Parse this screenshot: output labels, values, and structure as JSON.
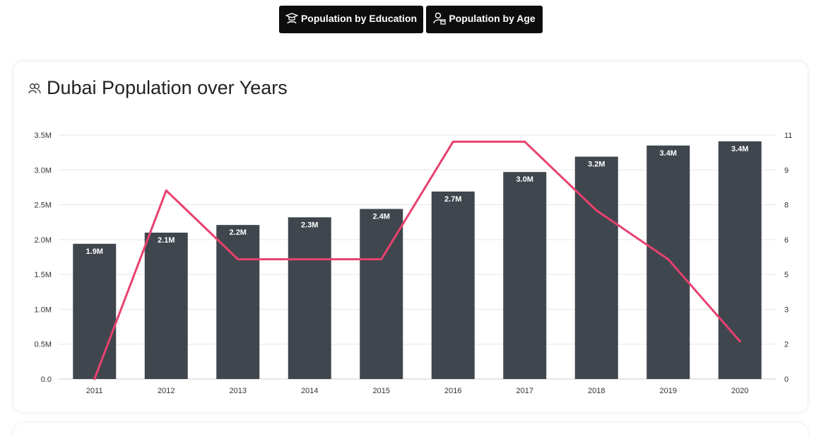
{
  "nav": {
    "education_label": "Population by Education",
    "age_label": "Population by Age"
  },
  "card": {
    "title": "Dubai Population over Years"
  },
  "colors": {
    "bar": "#40464e",
    "line": "#e8416f",
    "grid": "#e6e6e6",
    "axis_text": "#333333",
    "button_bg": "#0d0d0d"
  },
  "chart_data": {
    "type": "bar",
    "categories": [
      "2011",
      "2012",
      "2013",
      "2014",
      "2015",
      "2016",
      "2017",
      "2018",
      "2019",
      "2020"
    ],
    "series": [
      {
        "type": "bar",
        "axis": "left",
        "values": [
          1.94,
          2.1,
          2.21,
          2.32,
          2.44,
          2.69,
          2.97,
          3.19,
          3.35,
          3.41
        ],
        "data_labels": [
          "1.9M",
          "2.1M",
          "2.2M",
          "2.3M",
          "2.4M",
          "2.7M",
          "3.0M",
          "3.2M",
          "3.4M",
          "3.4M"
        ]
      },
      {
        "type": "line",
        "axis": "right",
        "values": [
          0,
          8.5,
          5.4,
          5.4,
          5.4,
          10.7,
          10.7,
          7.6,
          5.4,
          1.7
        ]
      }
    ],
    "y_left": {
      "ylim": [
        0,
        3.5
      ],
      "ticks": [
        0,
        0.5,
        1,
        1.5,
        2,
        2.5,
        3,
        3.5
      ],
      "tick_labels": [
        "0.0",
        "0.5M",
        "1.0M",
        "1.5M",
        "2.0M",
        "2.5M",
        "3.0M",
        "3.5M"
      ]
    },
    "y_right": {
      "ylim": [
        0,
        11
      ],
      "ticks": [
        0,
        1.571,
        3.143,
        4.714,
        6.286,
        7.857,
        9.429,
        11
      ],
      "tick_labels": [
        "0",
        "2",
        "3",
        "5",
        "6",
        "8",
        "9",
        "11"
      ]
    },
    "grid": true,
    "legend": "none"
  }
}
